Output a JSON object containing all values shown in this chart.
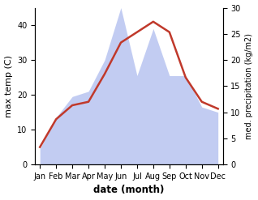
{
  "months": [
    "Jan",
    "Feb",
    "Mar",
    "Apr",
    "May",
    "Jun",
    "Jul",
    "Aug",
    "Sep",
    "Oct",
    "Nov",
    "Dec"
  ],
  "temperature": [
    5,
    13,
    17,
    18,
    26,
    35,
    38,
    41,
    38,
    25,
    18,
    16
  ],
  "precipitation": [
    3,
    9,
    13,
    14,
    20,
    30,
    17,
    26,
    17,
    17,
    11,
    10
  ],
  "temp_color": "#c0392b",
  "precip_fill_color": "#b8c4f0",
  "xlabel": "date (month)",
  "ylabel_left": "max temp (C)",
  "ylabel_right": "med. precipitation (kg/m2)",
  "ylim_left": [
    0,
    45
  ],
  "ylim_right": [
    0,
    30
  ],
  "yticks_left": [
    0,
    10,
    20,
    30,
    40
  ],
  "yticks_right": [
    0,
    5,
    10,
    15,
    20,
    25,
    30
  ],
  "temp_linewidth": 1.8
}
